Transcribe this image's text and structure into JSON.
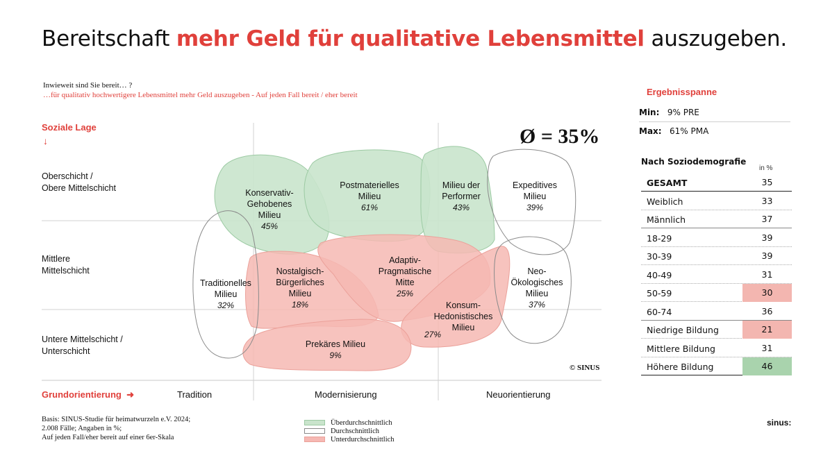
{
  "title": {
    "part1": "Bereitschaft ",
    "highlight": "mehr Geld für qualitative Lebensmittel",
    "part2": " auszugeben."
  },
  "question": {
    "line1": "Inwieweit sind Sie bereit… ?",
    "line2": "…für qualitativ hochwertigere Lebensmittel mehr Geld auszugeben - Auf jeden Fall bereit / eher bereit"
  },
  "axes": {
    "y_title": "Soziale Lage",
    "y_arrow": "↓",
    "rows": [
      {
        "line1": "Oberschicht /",
        "line2": "Obere Mittelschicht"
      },
      {
        "line1": "Mittlere",
        "line2": "Mittelschicht"
      },
      {
        "line1": "Untere Mittelschicht /",
        "line2": "Unterschicht"
      }
    ],
    "x_title": "Grundorientierung",
    "x_arrow": "➜",
    "x_categories": [
      "Tradition",
      "Modernisierung",
      "Neuorientierung"
    ]
  },
  "average": "Ø = 35%",
  "copyright": "© SINUS",
  "chart_data": {
    "type": "milieu-map",
    "title": "Bereitschaft mehr Geld für qualitative Lebensmittel auszugeben.",
    "average_percent": 35,
    "milieus": [
      {
        "name": "Konservativ-Gehobenes Milieu",
        "lines": [
          "Konservativ-",
          "Gehobenes",
          "Milieu"
        ],
        "value": 45,
        "label": "45%",
        "category": "above"
      },
      {
        "name": "Postmaterielles Milieu",
        "lines": [
          "Postmaterielles",
          "Milieu"
        ],
        "value": 61,
        "label": "61%",
        "category": "above"
      },
      {
        "name": "Milieu der Performer",
        "lines": [
          "Milieu der",
          "Performer"
        ],
        "value": 43,
        "label": "43%",
        "category": "above"
      },
      {
        "name": "Expeditives Milieu",
        "lines": [
          "Expeditives",
          "Milieu"
        ],
        "value": 39,
        "label": "39%",
        "category": "average"
      },
      {
        "name": "Traditionelles Milieu",
        "lines": [
          "Traditionelles",
          "Milieu"
        ],
        "value": 32,
        "label": "32%",
        "category": "average"
      },
      {
        "name": "Nostalgisch-Bürgerliches Milieu",
        "lines": [
          "Nostalgisch-",
          "Bürgerliches",
          "Milieu"
        ],
        "value": 18,
        "label": "18%",
        "category": "below"
      },
      {
        "name": "Adaptiv-Pragmatische Mitte",
        "lines": [
          "Adaptiv-",
          "Pragmatische",
          "Mitte"
        ],
        "value": 25,
        "label": "25%",
        "category": "below"
      },
      {
        "name": "Neo-Ökologisches Milieu",
        "lines": [
          "Neo-",
          "Ökologisches",
          "Milieu"
        ],
        "value": 37,
        "label": "37%",
        "category": "average"
      },
      {
        "name": "Konsum-Hedonistisches Milieu",
        "lines": [
          "Konsum-",
          "Hedonistisches",
          "Milieu"
        ],
        "value": 27,
        "label": "27%",
        "category": "below"
      },
      {
        "name": "Prekäres Milieu",
        "lines": [
          "Prekäres Milieu"
        ],
        "value": 9,
        "label": "9%",
        "category": "below"
      }
    ],
    "legend": [
      "Überdurchschnittlich",
      "Durchschnittlich",
      "Unterdurchschnittlich"
    ]
  },
  "colors": {
    "above": "#c9e4cc",
    "above_stroke": "#9ccaa3",
    "below": "#f6b8b3",
    "below_stroke": "#eba19a",
    "accent": "#e0403b",
    "cell_red": "#f3b6b0",
    "cell_green": "#a9d3ad"
  },
  "basis": {
    "line1": "Basis: SINUS-Studie für heimatwurzeln e.V. 2024;",
    "line2": "2.008 Fälle; Angaben in %;",
    "line3": "Auf jeden Fall/eher bereit auf einer 6er-Skala"
  },
  "logo": "sinus:",
  "panel": {
    "title": "Ergebnisspanne",
    "min_label": "Min:",
    "min_value": "9% PRE",
    "max_label": "Max:",
    "max_value": "61% PMA",
    "table_title": "Nach Soziodemografie",
    "unit": "in %",
    "rows": [
      {
        "label": "GESAMT",
        "value": "35",
        "highlight": "none",
        "bold": true
      },
      {
        "label": "Weiblich",
        "value": "33",
        "highlight": "none"
      },
      {
        "label": "Männlich",
        "value": "37",
        "highlight": "none"
      },
      {
        "label": "18-29",
        "value": "39",
        "highlight": "none"
      },
      {
        "label": "30-39",
        "value": "39",
        "highlight": "none"
      },
      {
        "label": "40-49",
        "value": "31",
        "highlight": "none"
      },
      {
        "label": "50-59",
        "value": "30",
        "highlight": "red"
      },
      {
        "label": "60-74",
        "value": "36",
        "highlight": "none"
      },
      {
        "label": "Niedrige Bildung",
        "value": "21",
        "highlight": "red"
      },
      {
        "label": "Mittlere Bildung",
        "value": "31",
        "highlight": "none"
      },
      {
        "label": "Höhere Bildung",
        "value": "46",
        "highlight": "green"
      }
    ]
  }
}
